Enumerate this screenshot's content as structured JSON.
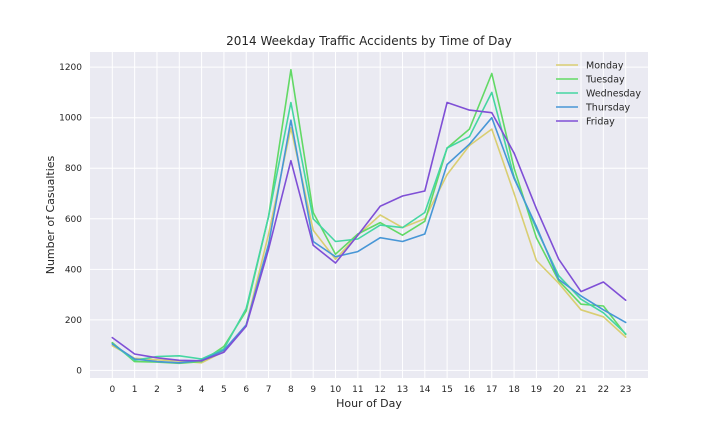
{
  "chart_data": {
    "type": "line",
    "title": "2014 Weekday Traffic Accidents by Time of Day",
    "xlabel": "Hour of Day",
    "ylabel": "Number of Casualties",
    "x": [
      0,
      1,
      2,
      3,
      4,
      5,
      6,
      7,
      8,
      9,
      10,
      11,
      12,
      13,
      14,
      15,
      16,
      17,
      18,
      19,
      20,
      21,
      22,
      23
    ],
    "xlim": [
      -1,
      24
    ],
    "ylim": [
      -30,
      1260
    ],
    "yticks": [
      0,
      200,
      400,
      600,
      800,
      1000,
      1200
    ],
    "grid": true,
    "legend_position": "top-right",
    "series": [
      {
        "name": "Monday",
        "color": "#d9ce72",
        "values": [
          98,
          48,
          42,
          37,
          30,
          75,
          180,
          540,
          960,
          555,
          440,
          535,
          615,
          565,
          600,
          775,
          890,
          955,
          700,
          435,
          345,
          240,
          212,
          132
        ]
      },
      {
        "name": "Tuesday",
        "color": "#62d965",
        "values": [
          110,
          35,
          33,
          28,
          35,
          95,
          235,
          610,
          1190,
          625,
          460,
          540,
          585,
          535,
          590,
          880,
          955,
          1175,
          800,
          525,
          355,
          262,
          255,
          142
        ]
      },
      {
        "name": "Wednesday",
        "color": "#45d6a2",
        "values": [
          105,
          40,
          55,
          58,
          45,
          85,
          245,
          610,
          1060,
          600,
          510,
          520,
          575,
          565,
          625,
          880,
          925,
          1100,
          765,
          560,
          375,
          282,
          228,
          145
        ]
      },
      {
        "name": "Thursday",
        "color": "#4796d6",
        "values": [
          105,
          45,
          35,
          30,
          40,
          80,
          180,
          500,
          990,
          510,
          450,
          470,
          525,
          510,
          540,
          815,
          895,
          1000,
          760,
          570,
          360,
          295,
          240,
          190
        ]
      },
      {
        "name": "Friday",
        "color": "#7f4fd6",
        "values": [
          130,
          65,
          50,
          40,
          38,
          72,
          175,
          480,
          830,
          495,
          425,
          535,
          650,
          690,
          710,
          1060,
          1030,
          1020,
          860,
          640,
          440,
          312,
          350,
          278
        ]
      }
    ]
  }
}
